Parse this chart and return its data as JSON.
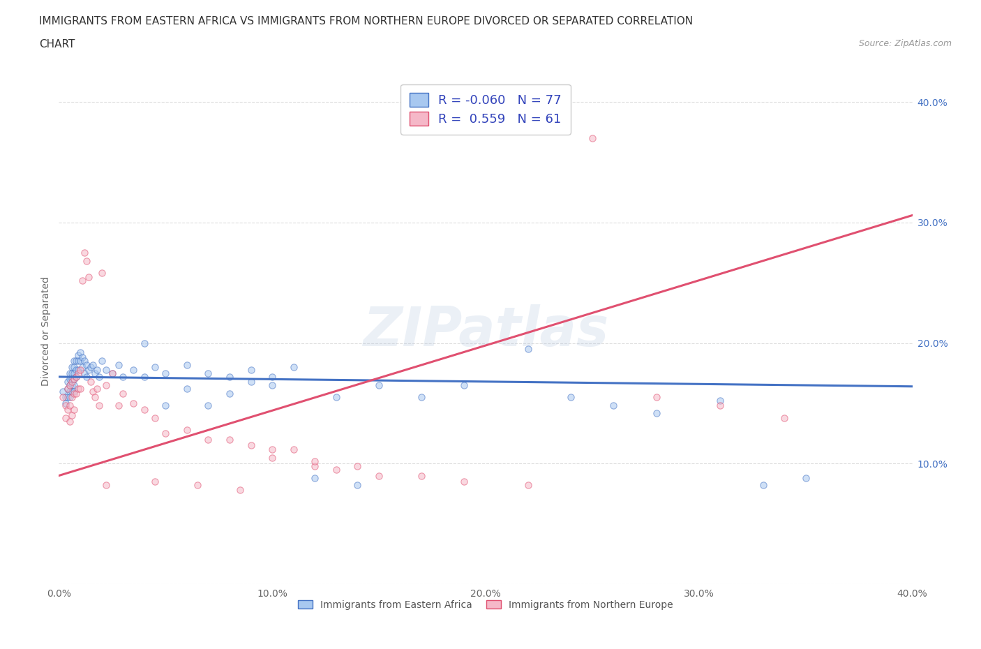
{
  "title_line1": "IMMIGRANTS FROM EASTERN AFRICA VS IMMIGRANTS FROM NORTHERN EUROPE DIVORCED OR SEPARATED CORRELATION",
  "title_line2": "CHART",
  "source": "Source: ZipAtlas.com",
  "ylabel": "Divorced or Separated",
  "xmin": 0.0,
  "xmax": 0.4,
  "ymin": 0.0,
  "ymax": 0.42,
  "ytick_values": [
    0.0,
    0.1,
    0.2,
    0.3,
    0.4
  ],
  "ytick_labels": [
    "",
    "10.0%",
    "20.0%",
    "30.0%",
    "40.0%"
  ],
  "xtick_values": [
    0.0,
    0.1,
    0.2,
    0.3,
    0.4
  ],
  "xtick_labels": [
    "0.0%",
    "10.0%",
    "20.0%",
    "30.0%",
    "40.0%"
  ],
  "color_blue": "#a8c8f0",
  "color_pink": "#f5b8c8",
  "color_blue_line": "#4472c4",
  "color_pink_line": "#e05070",
  "R_blue": -0.06,
  "N_blue": 77,
  "R_pink": 0.559,
  "N_pink": 61,
  "legend_R_color": "#3344bb",
  "watermark": "ZIPatlas",
  "blue_scatter_x": [
    0.002,
    0.003,
    0.003,
    0.004,
    0.004,
    0.004,
    0.005,
    0.005,
    0.005,
    0.005,
    0.005,
    0.006,
    0.006,
    0.006,
    0.006,
    0.006,
    0.007,
    0.007,
    0.007,
    0.007,
    0.007,
    0.007,
    0.008,
    0.008,
    0.008,
    0.009,
    0.009,
    0.009,
    0.01,
    0.01,
    0.011,
    0.011,
    0.012,
    0.012,
    0.013,
    0.013,
    0.014,
    0.015,
    0.016,
    0.017,
    0.018,
    0.019,
    0.02,
    0.022,
    0.025,
    0.028,
    0.03,
    0.035,
    0.04,
    0.045,
    0.05,
    0.06,
    0.07,
    0.08,
    0.09,
    0.1,
    0.11,
    0.13,
    0.15,
    0.17,
    0.19,
    0.22,
    0.24,
    0.26,
    0.28,
    0.31,
    0.33,
    0.35,
    0.04,
    0.05,
    0.06,
    0.07,
    0.08,
    0.09,
    0.1,
    0.12,
    0.14
  ],
  "blue_scatter_y": [
    0.16,
    0.155,
    0.15,
    0.168,
    0.162,
    0.155,
    0.175,
    0.17,
    0.165,
    0.16,
    0.155,
    0.18,
    0.175,
    0.17,
    0.165,
    0.16,
    0.185,
    0.18,
    0.175,
    0.17,
    0.165,
    0.16,
    0.185,
    0.178,
    0.172,
    0.19,
    0.185,
    0.178,
    0.192,
    0.185,
    0.188,
    0.18,
    0.185,
    0.175,
    0.182,
    0.172,
    0.178,
    0.18,
    0.182,
    0.175,
    0.178,
    0.172,
    0.185,
    0.178,
    0.175,
    0.182,
    0.172,
    0.178,
    0.172,
    0.18,
    0.175,
    0.182,
    0.175,
    0.172,
    0.178,
    0.172,
    0.18,
    0.155,
    0.165,
    0.155,
    0.165,
    0.195,
    0.155,
    0.148,
    0.142,
    0.152,
    0.082,
    0.088,
    0.2,
    0.148,
    0.162,
    0.148,
    0.158,
    0.168,
    0.165,
    0.088,
    0.082
  ],
  "pink_scatter_x": [
    0.002,
    0.003,
    0.003,
    0.004,
    0.004,
    0.005,
    0.005,
    0.005,
    0.006,
    0.006,
    0.006,
    0.007,
    0.007,
    0.007,
    0.008,
    0.008,
    0.009,
    0.009,
    0.01,
    0.01,
    0.011,
    0.012,
    0.013,
    0.014,
    0.015,
    0.016,
    0.017,
    0.018,
    0.019,
    0.02,
    0.022,
    0.025,
    0.028,
    0.03,
    0.035,
    0.04,
    0.045,
    0.05,
    0.06,
    0.07,
    0.08,
    0.09,
    0.1,
    0.11,
    0.12,
    0.13,
    0.15,
    0.17,
    0.19,
    0.22,
    0.25,
    0.28,
    0.31,
    0.34,
    0.022,
    0.045,
    0.065,
    0.085,
    0.1,
    0.12,
    0.14
  ],
  "pink_scatter_y": [
    0.155,
    0.148,
    0.138,
    0.162,
    0.145,
    0.165,
    0.148,
    0.135,
    0.168,
    0.155,
    0.14,
    0.17,
    0.158,
    0.145,
    0.172,
    0.158,
    0.175,
    0.162,
    0.178,
    0.162,
    0.252,
    0.275,
    0.268,
    0.255,
    0.168,
    0.16,
    0.155,
    0.162,
    0.148,
    0.258,
    0.165,
    0.175,
    0.148,
    0.158,
    0.15,
    0.145,
    0.138,
    0.125,
    0.128,
    0.12,
    0.12,
    0.115,
    0.112,
    0.112,
    0.098,
    0.095,
    0.09,
    0.09,
    0.085,
    0.082,
    0.37,
    0.155,
    0.148,
    0.138,
    0.082,
    0.085,
    0.082,
    0.078,
    0.105,
    0.102,
    0.098
  ],
  "blue_reg_intercept": 0.172,
  "blue_reg_slope": -0.02,
  "pink_reg_intercept": 0.09,
  "pink_reg_slope": 0.54,
  "grid_color": "#dddddd",
  "background_color": "#ffffff",
  "title_fontsize": 11,
  "axis_label_fontsize": 10,
  "tick_fontsize": 10,
  "legend_fontsize": 13,
  "dot_size": 45,
  "dot_alpha": 0.55
}
